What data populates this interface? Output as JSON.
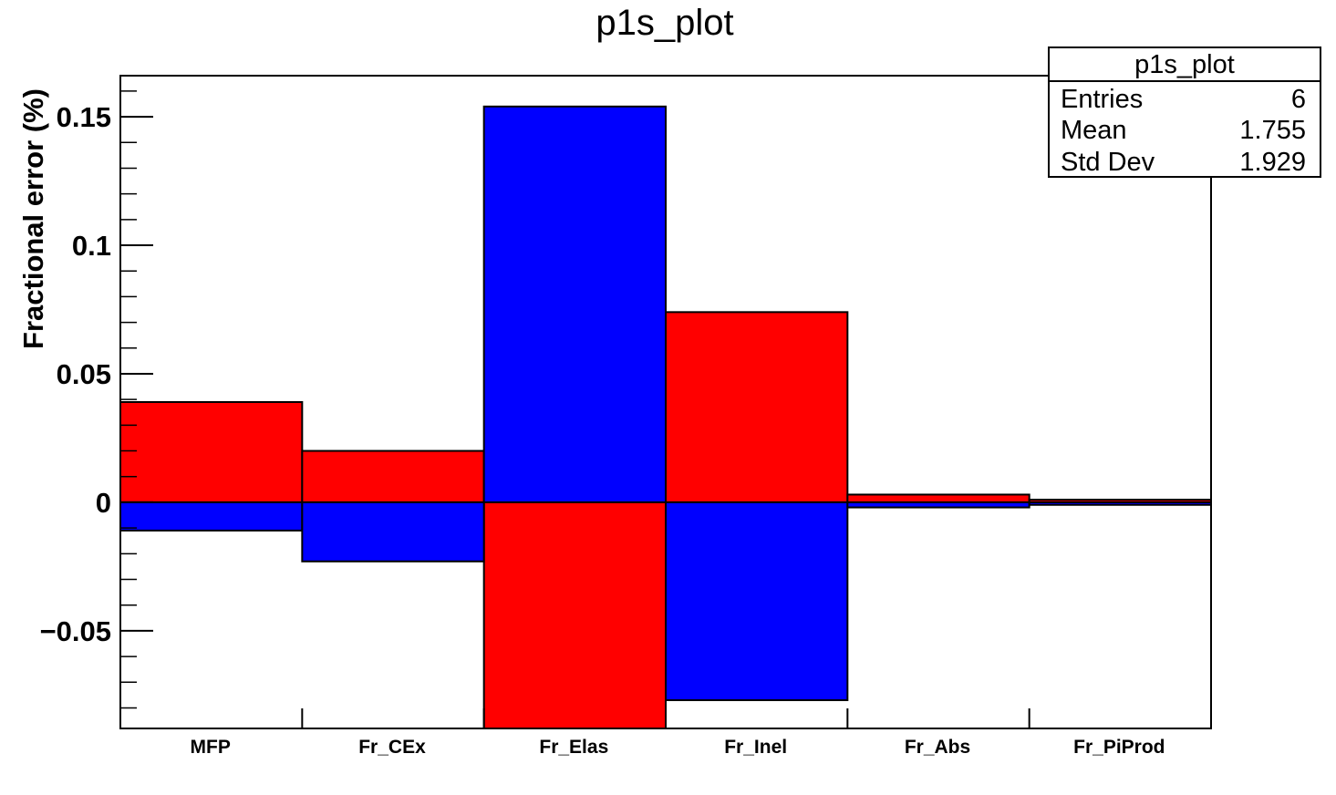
{
  "chart_data": {
    "type": "bar",
    "title": "p1s_plot",
    "xlabel": "",
    "ylabel": "Fractional error  (%)",
    "categories": [
      "MFP",
      "Fr_CEx",
      "Fr_Elas",
      "Fr_Inel",
      "Fr_Abs",
      "Fr_PiProd"
    ],
    "series": [
      {
        "color": "#ff0000",
        "values": [
          0.039,
          0.02,
          -0.088,
          0.074,
          0.003,
          0.001
        ]
      },
      {
        "color": "#0000ff",
        "values": [
          -0.011,
          -0.023,
          0.154,
          -0.077,
          -0.002,
          -0.001
        ]
      }
    ],
    "ylim": [
      -0.088,
      0.166
    ],
    "yticks": [
      {
        "value": 0.15,
        "label": "0.15"
      },
      {
        "value": 0.1,
        "label": "0.1"
      },
      {
        "value": 0.05,
        "label": "0.05"
      },
      {
        "value": 0,
        "label": "0"
      },
      {
        "value": -0.05,
        "label": "−0.05"
      }
    ],
    "grid": false,
    "legend": "none",
    "stats_box": {
      "title": "p1s_plot",
      "rows": [
        {
          "label": "Entries",
          "value": "6"
        },
        {
          "label": "Mean",
          "value": "1.755"
        },
        {
          "label": "Std Dev",
          "value": "1.929"
        }
      ]
    }
  }
}
